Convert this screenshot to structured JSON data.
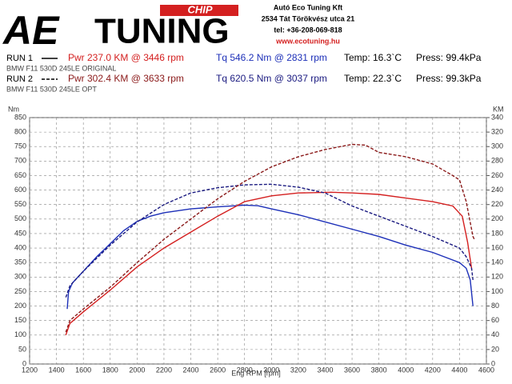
{
  "header": {
    "logo": {
      "ae": "AE",
      "tuning": "TUNING",
      "chip": "CHIP"
    },
    "company": [
      "Autó Eco Tuning Kft",
      "2534 Tát Törökvész utca 21",
      "tel: +36-208-069-818",
      "www.ecotuning.hu"
    ],
    "runs": [
      {
        "run": "RUN 1",
        "car": "BMW F11 530D 245LE ORIGINAL",
        "power": "Pwr  237.0 KM @ 3446 rpm",
        "torque": "Tq  546.2 Nm @ 2831 rpm",
        "temp": "Temp: 16.3`C",
        "press": "Press: 99.4kPa"
      },
      {
        "run": "RUN 2",
        "car": "BMW F11 530D 245LE OPT",
        "power": "Pwr  302.4 KM @ 3633 rpm",
        "torque": "Tq  620.5 Nm @ 3037 rpm",
        "temp": "Temp: 22.3`C",
        "press": "Press: 99.3kPa"
      }
    ]
  },
  "chart_data": {
    "type": "line",
    "x_label": "Eng RPM [rpm]",
    "y_label": "Nm",
    "y2_label": "KM",
    "xlim": [
      1200,
      4600
    ],
    "xticks": [
      1200,
      1400,
      1600,
      1800,
      2000,
      2200,
      2400,
      2600,
      2800,
      3000,
      3200,
      3400,
      3600,
      3800,
      4000,
      4200,
      4400,
      4600
    ],
    "ylim": [
      0,
      850
    ],
    "yticks": [
      0,
      50,
      100,
      150,
      200,
      250,
      300,
      350,
      400,
      450,
      500,
      550,
      600,
      650,
      700,
      750,
      800,
      850
    ],
    "y2lim": [
      0,
      340
    ],
    "y2ticks": [
      0,
      20,
      40,
      60,
      80,
      100,
      120,
      140,
      160,
      180,
      200,
      220,
      240,
      260,
      280,
      300,
      320,
      340
    ],
    "grid": true,
    "series": [
      {
        "name": "RUN 1 Tq",
        "color": "#1c2fb8",
        "linestyle": "solid",
        "x": [
          1480,
          1490,
          1520,
          1600,
          1700,
          1800,
          1900,
          2000,
          2100,
          2200,
          2400,
          2600,
          2800,
          2900,
          3000,
          3200,
          3400,
          3600,
          3800,
          4000,
          4200,
          4400,
          4450,
          4480,
          4500
        ],
        "values": [
          190,
          250,
          280,
          320,
          370,
          415,
          460,
          492,
          510,
          522,
          535,
          542,
          548,
          546,
          535,
          515,
          490,
          465,
          440,
          410,
          385,
          350,
          330,
          290,
          200
        ]
      },
      {
        "name": "RUN 1 Pwr",
        "color": "#d42020",
        "linestyle": "solid",
        "axis": "y2",
        "x": [
          1470,
          1500,
          1600,
          1800,
          2000,
          2200,
          2400,
          2600,
          2800,
          3000,
          3200,
          3446,
          3600,
          3800,
          4000,
          4200,
          4350,
          4420,
          4460,
          4490
        ],
        "values": [
          40,
          56,
          72,
          102,
          134,
          160,
          182,
          204,
          224,
          232,
          236,
          237,
          236,
          234,
          229,
          224,
          218,
          204,
          168,
          132
        ]
      },
      {
        "name": "RUN 2 Tq",
        "color": "#1a1a80",
        "linestyle": "dashed",
        "x": [
          1470,
          1500,
          1600,
          1800,
          2000,
          2200,
          2400,
          2600,
          2800,
          3000,
          3200,
          3400,
          3600,
          3800,
          4000,
          4200,
          4400,
          4450,
          4490,
          4500
        ],
        "values": [
          230,
          270,
          320,
          410,
          490,
          550,
          590,
          608,
          618,
          620,
          610,
          590,
          545,
          510,
          475,
          440,
          400,
          370,
          330,
          290
        ]
      },
      {
        "name": "RUN 2 Pwr",
        "color": "#8b1a1a",
        "linestyle": "dashed",
        "axis": "y2",
        "x": [
          1470,
          1500,
          1600,
          1800,
          2000,
          2200,
          2400,
          2600,
          2800,
          3000,
          3200,
          3400,
          3600,
          3700,
          3800,
          4000,
          4200,
          4350,
          4400,
          4450,
          4500,
          4510
        ],
        "values": [
          44,
          60,
          76,
          106,
          140,
          172,
          200,
          228,
          252,
          272,
          286,
          296,
          303,
          302,
          292,
          286,
          276,
          260,
          254,
          224,
          176,
          172
        ]
      }
    ]
  }
}
